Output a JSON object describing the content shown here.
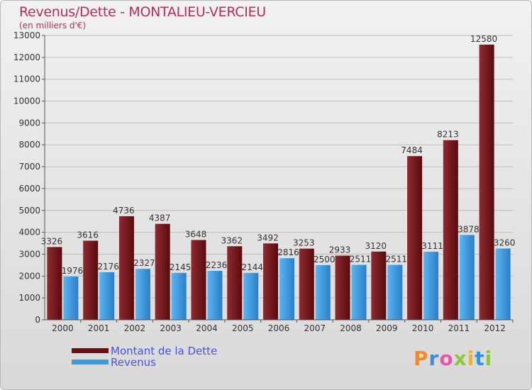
{
  "header": {
    "title": "Revenus/Dette - MONTALIEU-VERCIEU",
    "subtitle": "(en milliers d'€)"
  },
  "chart_data": {
    "type": "bar",
    "categories": [
      "2000",
      "2001",
      "2002",
      "2003",
      "2004",
      "2005",
      "2006",
      "2007",
      "2008",
      "2009",
      "2010",
      "2011",
      "2012"
    ],
    "series": [
      {
        "name": "Montant de la Dette",
        "values": [
          3326,
          3616,
          4736,
          4387,
          3648,
          3362,
          3492,
          3253,
          2933,
          3120,
          7484,
          8213,
          12580
        ],
        "color": "#7a1318"
      },
      {
        "name": "Revenus",
        "values": [
          1976,
          2176,
          2327,
          2145,
          2236,
          2144,
          2816,
          2500,
          2511,
          2511,
          3111,
          3878,
          3260
        ],
        "color": "#3b9be0"
      }
    ],
    "ylim": [
      0,
      13000
    ],
    "yticks": [
      0,
      1000,
      2000,
      3000,
      4000,
      5000,
      6000,
      7000,
      8000,
      9000,
      10000,
      11000,
      12000,
      13000
    ],
    "grid": true,
    "legend": "bottom-left"
  },
  "legend": {
    "items": [
      {
        "label": "Montant de la Dette",
        "color": "#6b0f14"
      },
      {
        "label": "Revenus",
        "color": "#3b9be0"
      }
    ]
  },
  "logo": {
    "letters": [
      {
        "char": "P",
        "color": "#f08a2c"
      },
      {
        "char": "r",
        "color": "#3a8fd8"
      },
      {
        "char": "o",
        "color": "#e05aa8"
      },
      {
        "char": "x",
        "color": "#8cc63f"
      },
      {
        "char": "i",
        "color": "#f5b31a"
      },
      {
        "char": "t",
        "color": "#3a8fd8"
      },
      {
        "char": "i",
        "color": "#8cc63f"
      }
    ]
  }
}
